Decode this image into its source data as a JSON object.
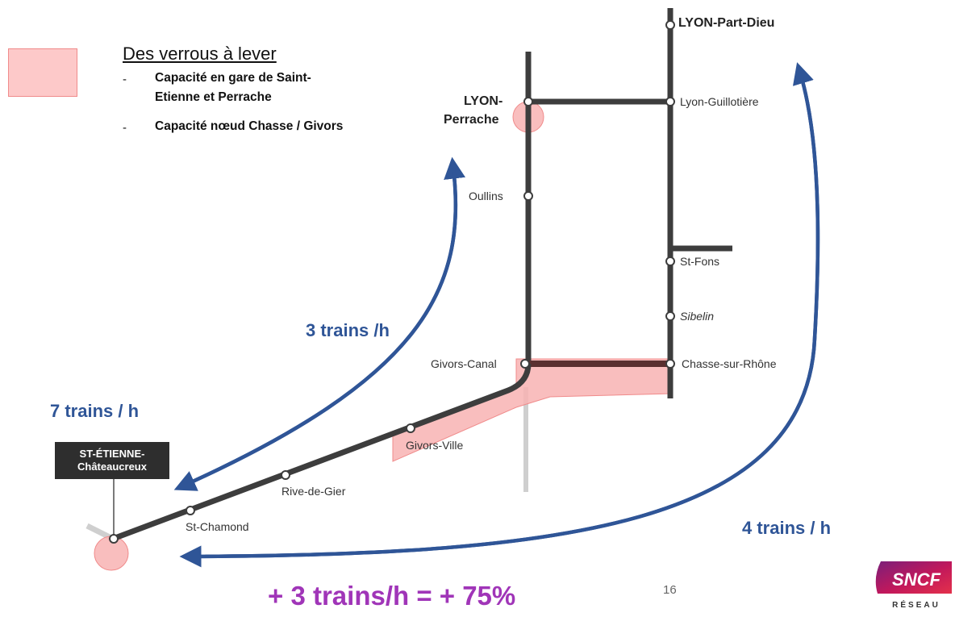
{
  "legend": {
    "title": "Des verrous à lever",
    "bullet": "-",
    "items": [
      "Capacité en gare de Saint-Etienne et Perrache",
      "Capacité nœud Chasse / Givors"
    ],
    "item1_line1": "Capacité en gare de Saint-",
    "item1_line2": "Etienne et Perrache",
    "item2": "Capacité nœud Chasse / Givors",
    "colors": {
      "fill": "#fdc9c9",
      "border": "#f08b8b"
    }
  },
  "stations": {
    "lyon_part_dieu": "LYON-Part-Dieu",
    "lyon_perrache_1": "LYON-",
    "lyon_perrache_2": "Perrache",
    "lyon_guillotiere": "Lyon-Guillotière",
    "oullins": "Oullins",
    "st_fons": "St-Fons",
    "sibelin": "Sibelin",
    "chasse_sur_rhone": "Chasse-sur-Rhône",
    "givors_canal": "Givors-Canal",
    "givors_ville": "Givors-Ville",
    "rive_de_gier": "Rive-de-Gier",
    "st_chamond": "St-Chamond",
    "st_etienne_1": "ST-ÉTIENNE-",
    "st_etienne_2": "Châteaucreux"
  },
  "flows": {
    "perrache": "3 trains /h",
    "st_etienne": "7 trains / h",
    "part_dieu": "4 trains / h",
    "result": "+ 3 trains/h = + 75%"
  },
  "page_number": "16",
  "logo": {
    "brand": "SNCF",
    "sub": "RÉSEAU"
  },
  "colors": {
    "arrow": "#2f5597",
    "track": "#3d3d3d",
    "bottleneck": "#f5a3a3",
    "result_text": "#a035b8"
  }
}
